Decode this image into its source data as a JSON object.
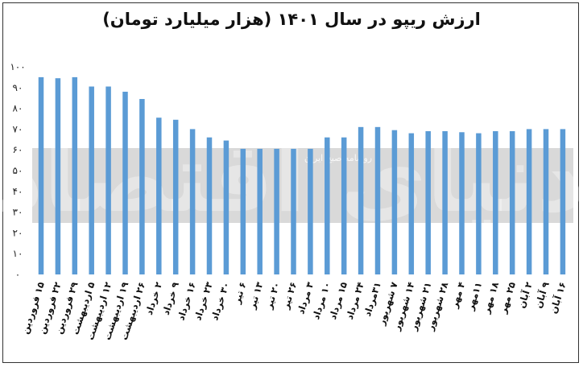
{
  "chart_data": {
    "type": "bar",
    "title": "ارزش ریپو در سال ۱۴۰۱ (هزار میلیارد تومان)",
    "xlabel": "",
    "ylabel": "",
    "ylim": [
      0,
      100
    ],
    "yticks": [
      0,
      10,
      20,
      30,
      40,
      50,
      60,
      70,
      80,
      90,
      100
    ],
    "ytick_labels": [
      "۰",
      "۱۰",
      "۲۰",
      "۳۰",
      "۴۰",
      "۵۰",
      "۶۰",
      "۷۰",
      "۸۰",
      "۹۰",
      "۱۰۰"
    ],
    "grid": false,
    "bar_color": "#5b9bd5",
    "categories": [
      "۱۵ فروردین",
      "۲۲ فروردین",
      "۲۹ فروردین",
      "۵ اردیبهشت",
      "۱۲ اردیبهشت",
      "۱۹ اردیبهشت",
      "۲۶ اردیبهشت",
      "۲ خرداد",
      "۹ خرداد",
      "۱۶ خرداد",
      "۲۳ خرداد",
      "۳۰ خرداد",
      "۶ تیر",
      "۱۳ تیر",
      "۲۰ تیر",
      "۲۶ تیر",
      "۳ مرداد",
      "۱۰ مرداد",
      "۱۵ مرداد",
      "۲۴ مرداد",
      "۳۱مرداد",
      "۷ شهریور",
      "۱۴ شهریور",
      "۲۱ شهریور",
      "۲۸ شهریور",
      "۴ مهر",
      "۱۱مهر",
      "۱۸ مهر",
      "۲۵ مهر",
      "۲ آبان",
      "۹ آبان",
      "۱۶ آبان"
    ],
    "values": [
      95,
      94.5,
      95,
      90.5,
      90.5,
      88,
      84.5,
      75.5,
      74.5,
      70,
      66,
      64.5,
      60.5,
      60.5,
      60.5,
      60.5,
      60.5,
      66,
      66,
      71,
      71,
      69.5,
      68,
      69,
      69,
      68.5,
      68,
      69,
      69,
      70,
      70,
      70
    ]
  },
  "watermark": {
    "logo_text": "دنیای اقتصاد",
    "subtitle": "روزنامه صبح ایران",
    "band_color": "#d9d9d9"
  }
}
